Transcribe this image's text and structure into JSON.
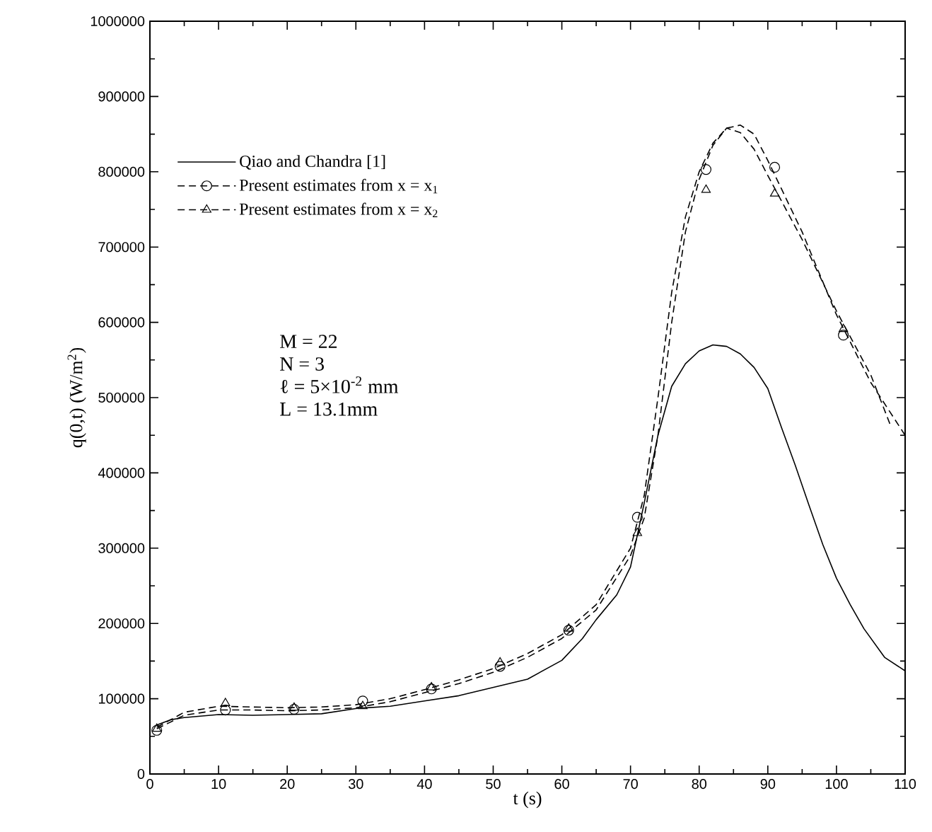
{
  "chart_data": {
    "type": "line",
    "xlabel": "t (s)",
    "ylabel": "q(0,t) (W/m$^{2}$)",
    "xlim": [
      0,
      110
    ],
    "xticks": [
      0,
      10,
      20,
      30,
      40,
      50,
      60,
      70,
      80,
      90,
      100,
      110
    ],
    "ylim": [
      0,
      1000000
    ],
    "yticks": [
      0,
      100000,
      200000,
      300000,
      400000,
      500000,
      600000,
      700000,
      800000,
      900000,
      1000000
    ],
    "grid": false,
    "legend": "top left",
    "annotations": [
      "M = 22",
      "N = 3",
      "ℓ = 5×10$^{-2}$ mm",
      "L = 13.1mm"
    ],
    "series": [
      {
        "name": "Qiao and Chandra [1]",
        "line_style": "solid",
        "color": "#000000",
        "x": [
          1,
          3,
          5,
          10,
          15,
          20,
          25,
          30,
          35,
          40,
          45,
          50,
          55,
          60,
          63,
          65,
          68,
          70,
          72,
          74,
          76,
          78,
          80,
          82,
          84,
          86,
          88,
          90,
          92,
          94,
          96,
          98,
          100,
          102,
          104,
          107,
          110
        ],
        "values": [
          65000,
          72000,
          75000,
          79000,
          78000,
          79000,
          80000,
          87000,
          90000,
          97000,
          104000,
          115000,
          126000,
          151000,
          180000,
          205000,
          238000,
          275000,
          360000,
          450000,
          515000,
          545000,
          562000,
          570000,
          568000,
          558000,
          540000,
          512000,
          460000,
          410000,
          357000,
          305000,
          260000,
          225000,
          193000,
          155000,
          137000
        ]
      },
      {
        "name": "Present estimates from x = x$_{1}$",
        "line_style": "dashed",
        "color": "#000000",
        "x": [
          1,
          5,
          10,
          15,
          20,
          25,
          30,
          35,
          40,
          45,
          50,
          55,
          60,
          65,
          70,
          72,
          74,
          76,
          78,
          80,
          82,
          84,
          86,
          88,
          90,
          95,
          100,
          105,
          110
        ],
        "values": [
          62000,
          82000,
          90000,
          89000,
          88000,
          89000,
          92000,
          100000,
          112000,
          125000,
          140000,
          160000,
          185000,
          225000,
          300000,
          370000,
          500000,
          640000,
          740000,
          800000,
          838000,
          858000,
          862000,
          850000,
          815000,
          720000,
          610000,
          520000,
          450000
        ]
      },
      {
        "type": "scatter",
        "marker": "circle",
        "color": "#000000",
        "x": [
          1,
          11,
          21,
          31,
          41,
          51,
          61,
          71,
          81,
          91,
          101
        ],
        "values": [
          58000,
          85000,
          86000,
          97000,
          113000,
          143000,
          191000,
          341000,
          803000,
          806000,
          583000
        ]
      },
      {
        "name": "Present estimates from x = x$_{2}$",
        "line_style": "dashed",
        "color": "#000000",
        "x": [
          1,
          5,
          10,
          15,
          20,
          25,
          30,
          35,
          40,
          45,
          50,
          55,
          60,
          65,
          70,
          72,
          74,
          76,
          78,
          80,
          82,
          84,
          86,
          88,
          90,
          95,
          100,
          105,
          108
        ],
        "values": [
          60000,
          78000,
          85000,
          85000,
          84000,
          85000,
          88000,
          96000,
          108000,
          120000,
          135000,
          155000,
          180000,
          218000,
          290000,
          340000,
          450000,
          600000,
          720000,
          790000,
          835000,
          858000,
          852000,
          830000,
          795000,
          710000,
          615000,
          530000,
          460000
        ]
      },
      {
        "type": "scatter",
        "marker": "triangle",
        "color": "#000000",
        "x": [
          1,
          11,
          21,
          31,
          41,
          51,
          61,
          71,
          81,
          91,
          101
        ],
        "values": [
          60000,
          94000,
          88000,
          90000,
          115000,
          148000,
          193000,
          320000,
          776000,
          771000,
          591000
        ]
      }
    ]
  }
}
